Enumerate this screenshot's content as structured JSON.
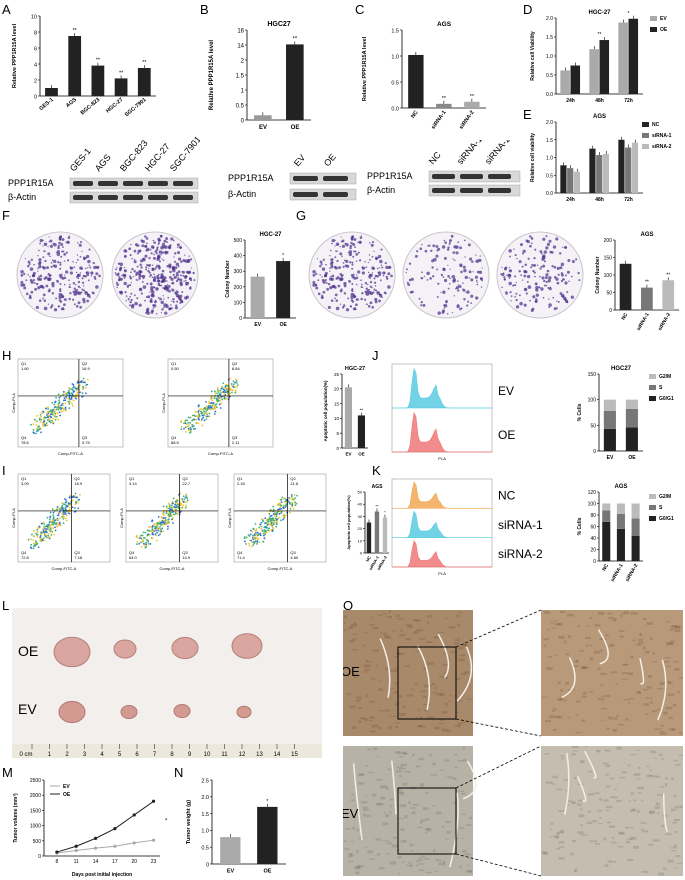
{
  "panel_letters": {
    "A": "A",
    "B": "B",
    "C": "C",
    "D": "D",
    "E": "E",
    "F": "F",
    "G": "G",
    "H": "H",
    "I": "I",
    "J": "J",
    "K": "K",
    "L": "L",
    "M": "M",
    "N": "N",
    "O": "O"
  },
  "chart_data": [
    {
      "id": "A",
      "type": "bar",
      "title": "",
      "ylabel": "Relative PPP1R15A level",
      "categories": [
        "GES-1",
        "AGS",
        "BGC-823",
        "HGC-27",
        "SGC-7901"
      ],
      "values": [
        1,
        7.5,
        3.8,
        2.2,
        3.5
      ],
      "ylim": [
        0,
        10
      ],
      "yticks": [
        "0",
        "2",
        "4",
        "6",
        "8",
        "10"
      ],
      "sig": [
        "",
        "**",
        "**",
        "**",
        "**"
      ],
      "color": "#222222"
    },
    {
      "id": "B",
      "type": "bar",
      "title": "HGC27",
      "ylabel": "Relative PPP1R15A level",
      "categories": [
        "EV",
        "OE"
      ],
      "values": [
        1.05,
        16.8
      ],
      "ylim": [
        0,
        20
      ],
      "yticks": [
        "0",
        "0.5",
        "1",
        "1.5",
        "2",
        "14",
        "16"
      ],
      "sig": [
        "",
        "**"
      ],
      "colors": [
        "#999999",
        "#222222"
      ]
    },
    {
      "id": "C",
      "type": "bar",
      "title": "AGS",
      "ylabel": "Relative PPP1R15A level",
      "categories": [
        "NC",
        "siRNA-1",
        "siRNA-2"
      ],
      "values": [
        1.02,
        0.08,
        0.12
      ],
      "ylim": [
        0,
        1.5
      ],
      "yticks": [
        "0.0",
        "0.5",
        "1.0",
        "1.5"
      ],
      "sig": [
        "",
        "**",
        "**"
      ],
      "colors": [
        "#222222",
        "#888888",
        "#aaaaaa"
      ]
    },
    {
      "id": "D",
      "type": "bar",
      "title": "HGC-27",
      "ylabel": "Relative cell Viability",
      "categories": [
        "24h",
        "48h",
        "72h"
      ],
      "series": [
        {
          "name": "EV",
          "values": [
            0.62,
            1.18,
            1.88
          ],
          "color": "#aaaaaa"
        },
        {
          "name": "OE",
          "values": [
            0.75,
            1.42,
            1.98
          ],
          "color": "#222222"
        }
      ],
      "ylim": [
        0,
        2
      ],
      "yticks": [
        "0.0",
        "0.5",
        "1.0",
        "1.5",
        "2.0"
      ],
      "sig": [
        "",
        "**",
        "*"
      ]
    },
    {
      "id": "E",
      "type": "bar",
      "title": "AGS",
      "ylabel": "Relative cell viability",
      "categories": [
        "24h",
        "48h",
        "72h"
      ],
      "series": [
        {
          "name": "NC",
          "values": [
            0.78,
            1.25,
            1.5
          ],
          "color": "#222222"
        },
        {
          "name": "siRNA-1",
          "values": [
            0.7,
            1.07,
            1.28
          ],
          "color": "#777777"
        },
        {
          "name": "siRNA-2",
          "values": [
            0.6,
            1.1,
            1.42
          ],
          "color": "#bbbbbb"
        }
      ],
      "ylim": [
        0,
        2
      ],
      "yticks": [
        "0.0",
        "0.5",
        "1.0",
        "1.5",
        "2.0"
      ]
    },
    {
      "id": "F",
      "type": "bar",
      "title": "HGC-27",
      "ylabel": "Colony Number",
      "categories": [
        "EV",
        "OE"
      ],
      "values": [
        265,
        365
      ],
      "ylim": [
        0,
        500
      ],
      "yticks": [
        "0",
        "100",
        "200",
        "300",
        "400",
        "500"
      ],
      "sig": [
        "",
        "*"
      ],
      "colors": [
        "#aaaaaa",
        "#222222"
      ]
    },
    {
      "id": "G",
      "type": "bar",
      "title": "AGS",
      "ylabel": "Colony Number",
      "categories": [
        "NC",
        "siRNA-1",
        "siRNA-2"
      ],
      "values": [
        132,
        64,
        85
      ],
      "ylim": [
        0,
        200
      ],
      "yticks": [
        "0",
        "50",
        "100",
        "150",
        "200"
      ],
      "sig": [
        "",
        "**",
        "**"
      ],
      "colors": [
        "#222222",
        "#777777",
        "#bbbbbb"
      ]
    },
    {
      "id": "H",
      "type": "bar",
      "title": "HGC-27",
      "ylabel": "Apoptotic cell population(%)",
      "categories": [
        "EV",
        "OE"
      ],
      "values": [
        20.5,
        11
      ],
      "ylim": [
        0,
        25
      ],
      "yticks": [
        "0",
        "5",
        "10",
        "15",
        "20",
        "25"
      ],
      "sig": [
        "",
        "**"
      ],
      "colors": [
        "#aaaaaa",
        "#222222"
      ]
    },
    {
      "id": "I",
      "type": "bar",
      "title": "AGS",
      "ylabel": "Apoptotic cell population(%)",
      "categories": [
        "NC",
        "siRNA-1",
        "siRNA-2"
      ],
      "values": [
        25,
        34,
        29
      ],
      "ylim": [
        0,
        50
      ],
      "yticks": [
        "0",
        "10",
        "20",
        "30",
        "40",
        "50"
      ],
      "sig": [
        "",
        "**",
        "*"
      ],
      "colors": [
        "#222222",
        "#777777",
        "#bbbbbb"
      ]
    },
    {
      "id": "J",
      "type": "bar",
      "stacked": true,
      "title": "HGC27",
      "ylabel": "% Cells",
      "categories": [
        "EV",
        "OE"
      ],
      "series": [
        {
          "name": "G0/G1",
          "values": [
            43,
            46
          ],
          "color": "#222222"
        },
        {
          "name": "S",
          "values": [
            35,
            36
          ],
          "color": "#777777"
        },
        {
          "name": "G2/M",
          "values": [
            22,
            18
          ],
          "color": "#bbbbbb"
        }
      ],
      "ylim": [
        0,
        150
      ],
      "yticks": [
        "0",
        "50",
        "100",
        "150"
      ]
    },
    {
      "id": "K",
      "type": "bar",
      "stacked": true,
      "title": "AGS",
      "ylabel": "% Cells",
      "categories": [
        "NC",
        "siRNA-1",
        "siRNA-2"
      ],
      "series": [
        {
          "name": "G0/G1",
          "values": [
            68,
            56,
            44
          ],
          "color": "#222222"
        },
        {
          "name": "S",
          "values": [
            20,
            26,
            30
          ],
          "color": "#777777"
        },
        {
          "name": "G2/M",
          "values": [
            12,
            18,
            26
          ],
          "color": "#bbbbbb"
        }
      ],
      "ylim": [
        0,
        120
      ],
      "yticks": [
        "0",
        "20",
        "40",
        "60",
        "80",
        "100",
        "120"
      ]
    },
    {
      "id": "M",
      "type": "line",
      "title": "",
      "xlabel": "Days post initial injection",
      "ylabel": "Tumor volume (mm³)",
      "x": [
        8,
        11,
        14,
        17,
        20,
        23
      ],
      "series": [
        {
          "name": "EV",
          "values": [
            100,
            180,
            260,
            320,
            430,
            520
          ],
          "color": "#aaaaaa"
        },
        {
          "name": "OE",
          "values": [
            130,
            320,
            580,
            900,
            1350,
            1800
          ],
          "color": "#222222"
        }
      ],
      "ylim": [
        0,
        2500
      ],
      "yticks": [
        "0",
        "500",
        "1000",
        "1500",
        "2000",
        "2500"
      ],
      "sig": "*"
    },
    {
      "id": "N",
      "type": "bar",
      "title": "",
      "ylabel": "Tumor weight (g)",
      "categories": [
        "EV",
        "OE"
      ],
      "values": [
        0.8,
        1.7
      ],
      "ylim": [
        0,
        2.5
      ],
      "yticks": [
        "0",
        "0.5",
        "1.0",
        "1.5",
        "2.0",
        "2.5"
      ],
      "sig": [
        "",
        "*"
      ],
      "colors": [
        "#aaaaaa",
        "#222222"
      ]
    }
  ],
  "blots": {
    "A": {
      "lanes": [
        "GES-1",
        "AGS",
        "BGC-823",
        "HGC-27",
        "SGC-7901"
      ],
      "rows": [
        "PPP1R15A",
        "β-Actin"
      ]
    },
    "B": {
      "lanes": [
        "EV",
        "OE"
      ],
      "rows": [
        "PPP1R15A",
        "β-Actin"
      ]
    },
    "C": {
      "lanes": [
        "NC",
        "siRNA-1",
        "siRNA-2"
      ],
      "rows": [
        "PPP1R15A",
        "β-Actin"
      ]
    }
  },
  "flow_H": [
    {
      "q1": "Q1",
      "q1v": "1.60",
      "q2": "Q2",
      "q2v": "16.9",
      "q3": "Q3",
      "q3v": "3.75",
      "q4": "Q4",
      "q4v": "78.6"
    },
    {
      "q1": "Q1",
      "q1v": "0.50",
      "q2": "Q2",
      "q2v": "8.84",
      "q3": "Q3",
      "q3v": "2.11",
      "q4": "Q4",
      "q4v": "88.5"
    }
  ],
  "flow_I": [
    {
      "q1": "Q1",
      "q1v": "3.09",
      "q2": "Q2",
      "q2v": "16.9",
      "q3": "Q3",
      "q3v": "7.18",
      "q4": "Q4",
      "q4v": "72.8"
    },
    {
      "q1": "Q1",
      "q1v": "3.14",
      "q2": "Q2",
      "q2v": "22.7",
      "q3": "Q3",
      "q3v": "10.9",
      "q4": "Q4",
      "q4v": "64.0"
    },
    {
      "q1": "Q1",
      "q1v": "2.18",
      "q2": "Q2",
      "q2v": "21.6",
      "q3": "Q3",
      "q3v": "4.60",
      "q4": "Q4",
      "q4v": "71.4"
    }
  ],
  "flow_axes": {
    "x": "Comp-FITC-A",
    "y": "Comp-PI-A"
  },
  "cycle_J": {
    "labels": [
      "EV",
      "OE"
    ],
    "xaxis": "PI-A"
  },
  "cycle_K": {
    "labels": [
      "NC",
      "siRNA-1",
      "siRNA-2"
    ],
    "xaxis": "PI-A"
  },
  "tumor": {
    "row1": "OE",
    "row2": "EV",
    "ruler": [
      "0 cm",
      "1",
      "2",
      "3",
      "4",
      "5",
      "6",
      "7",
      "8",
      "9",
      "10",
      "11",
      "12",
      "13",
      "14",
      "15"
    ]
  },
  "ihc": {
    "row1": "OE",
    "row2": "EV"
  }
}
